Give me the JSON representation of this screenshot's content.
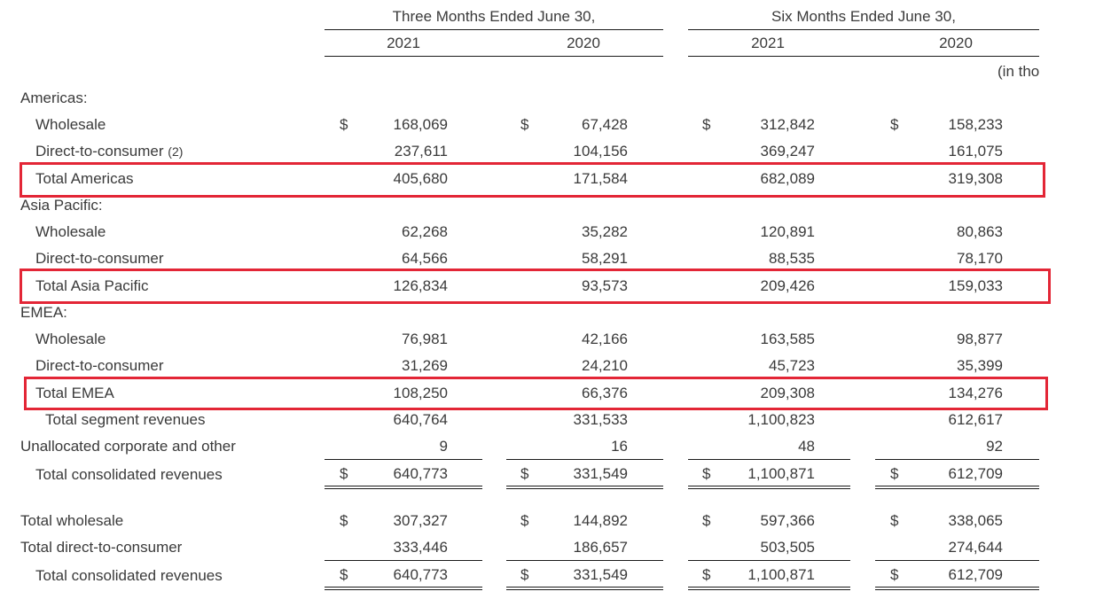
{
  "header": {
    "three_months": "Three Months Ended June 30,",
    "six_months": "Six Months Ended June 30,",
    "years": [
      "2021",
      "2020",
      "2021",
      "2020"
    ],
    "units": "(in tho"
  },
  "currency_symbol": "$",
  "highlight_color": "#e32636",
  "sections": {
    "americas": {
      "title": "Americas:",
      "wholesale": {
        "label": "Wholesale",
        "values": [
          "168,069",
          "67,428",
          "312,842",
          "158,233"
        ]
      },
      "dtc": {
        "label": "Direct-to-consumer",
        "note": "(2)",
        "values": [
          "237,611",
          "104,156",
          "369,247",
          "161,075"
        ]
      },
      "total": {
        "label": "Total Americas",
        "values": [
          "405,680",
          "171,584",
          "682,089",
          "319,308"
        ]
      }
    },
    "asia": {
      "title": "Asia Pacific:",
      "wholesale": {
        "label": "Wholesale",
        "values": [
          "62,268",
          "35,282",
          "120,891",
          "80,863"
        ]
      },
      "dtc": {
        "label": "Direct-to-consumer",
        "values": [
          "64,566",
          "58,291",
          "88,535",
          "78,170"
        ]
      },
      "total": {
        "label": "Total Asia Pacific",
        "values": [
          "126,834",
          "93,573",
          "209,426",
          "159,033"
        ]
      }
    },
    "emea": {
      "title": "EMEA:",
      "wholesale": {
        "label": "Wholesale",
        "values": [
          "76,981",
          "42,166",
          "163,585",
          "98,877"
        ]
      },
      "dtc": {
        "label": "Direct-to-consumer",
        "values": [
          "31,269",
          "24,210",
          "45,723",
          "35,399"
        ]
      },
      "total": {
        "label": "Total EMEA",
        "values": [
          "108,250",
          "66,376",
          "209,308",
          "134,276"
        ]
      }
    }
  },
  "totals": {
    "segment": {
      "label": "Total segment revenues",
      "values": [
        "640,764",
        "331,533",
        "1,100,823",
        "612,617"
      ]
    },
    "unallocated": {
      "label": "Unallocated corporate and other",
      "values": [
        "9",
        "16",
        "48",
        "92"
      ]
    },
    "consolidated": {
      "label": "Total consolidated revenues",
      "values": [
        "640,773",
        "331,549",
        "1,100,871",
        "612,709"
      ]
    }
  },
  "channel": {
    "wholesale": {
      "label": "Total wholesale",
      "values": [
        "307,327",
        "144,892",
        "597,366",
        "338,065"
      ]
    },
    "dtc": {
      "label": "Total direct-to-consumer",
      "values": [
        "333,446",
        "186,657",
        "503,505",
        "274,644"
      ]
    },
    "consolidated": {
      "label": "Total consolidated revenues",
      "values": [
        "640,773",
        "331,549",
        "1,100,871",
        "612,709"
      ]
    }
  }
}
